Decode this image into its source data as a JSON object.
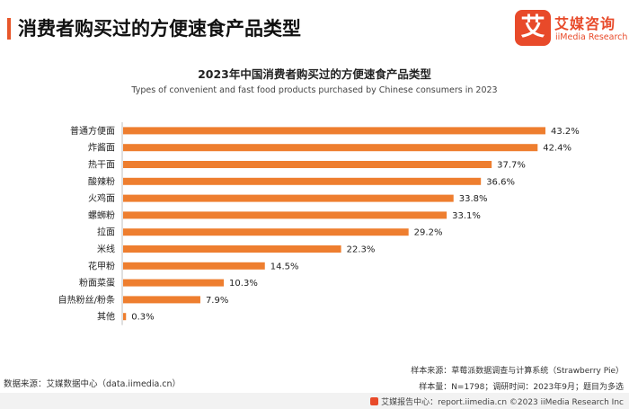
{
  "header": {
    "title": "消费者购买过的方便速食产品类型"
  },
  "logo": {
    "mark": "艾",
    "name_cn": "艾媒咨询",
    "name_en": "iiMedia Research"
  },
  "colors": {
    "accent": "#e8562a",
    "bar": "#ee7e2f",
    "axis": "#bfbfbf"
  },
  "chart_data": {
    "type": "bar",
    "orientation": "horizontal",
    "title": "2023年中国消费者购买过的方便速食产品类型",
    "subtitle": "Types of convenient and fast food products purchased by Chinese consumers in 2023",
    "categories": [
      "普通方便面",
      "炸酱面",
      "热干面",
      "酸辣粉",
      "火鸡面",
      "螺蛳粉",
      "拉面",
      "米线",
      "花甲粉",
      "粉面菜蛋",
      "自热粉丝/粉条",
      "其他"
    ],
    "values": [
      43.2,
      42.4,
      37.7,
      36.6,
      33.8,
      33.1,
      29.2,
      22.3,
      14.5,
      10.3,
      7.9,
      0.3
    ],
    "value_labels": [
      "43.2%",
      "42.4%",
      "37.7%",
      "36.6%",
      "33.8%",
      "33.1%",
      "29.2%",
      "22.3%",
      "14.5%",
      "10.3%",
      "7.9%",
      "0.3%"
    ],
    "unit": "%",
    "xlim": [
      0,
      45
    ],
    "grid": false,
    "legend": "none"
  },
  "footer": {
    "data_source": "数据来源：艾媒数据中心（data.iimedia.cn）",
    "sample_source": "样本来源：草莓派数据调查与计算系统（Strawberry Pie）",
    "sample_info": "样本量：N=1798；调研时间：2023年9月；题目为多选",
    "report": "艾媒报告中心：report.iimedia.cn  ©2023  iiMedia Research  Inc"
  }
}
